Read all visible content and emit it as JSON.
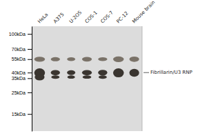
{
  "chart_data": {
    "type": "blot",
    "categories": [
      "HeLa",
      "A375",
      "U-2OS",
      "COS-1",
      "COS-7",
      "PC-12",
      "Mouse brain"
    ],
    "log": "y",
    "ylim": [
      10,
      120
    ],
    "yticks": [
      {
        "value": 100,
        "label": "100kDa"
      },
      {
        "value": 70,
        "label": "70kDa"
      },
      {
        "value": 55,
        "label": "55kDa"
      },
      {
        "value": 40,
        "label": "40kDa"
      },
      {
        "value": 35,
        "label": "35kDa"
      },
      {
        "value": 25,
        "label": "25kDa"
      },
      {
        "value": 15,
        "label": "15kDa"
      }
    ],
    "series": [
      {
        "color": "#7a7268",
        "y": 55,
        "heights": [
          6.5,
          5.5,
          5.0,
          6.0,
          5.0,
          7.5,
          7.0
        ],
        "widths": [
          0.68,
          0.58,
          0.52,
          0.62,
          0.58,
          0.68,
          0.62
        ]
      },
      {
        "color": "#3a3530",
        "y": 40,
        "heights": [
          8.5,
          5.0,
          4.5,
          5.0,
          5.5,
          8.5,
          7.5
        ],
        "widths": [
          0.68,
          0.58,
          0.52,
          0.62,
          0.58,
          0.68,
          0.62
        ]
      },
      {
        "color": "#3a3530",
        "y": 36,
        "heights": [
          5.5,
          3.0,
          2.8,
          2.8,
          3.0,
          0,
          0
        ],
        "widths": [
          0.62,
          0.52,
          0.48,
          0.55,
          0.52,
          0.0,
          0.0
        ]
      }
    ],
    "annotations": [
      {
        "text": "Fibrillarin/U3 RNP",
        "y": 40
      }
    ]
  }
}
